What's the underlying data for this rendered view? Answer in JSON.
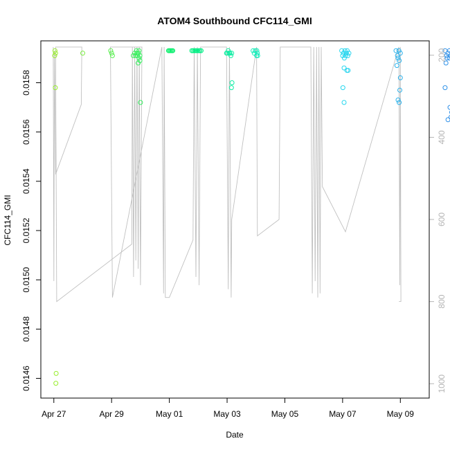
{
  "chart_data": {
    "type": "scatter",
    "title": "ATOM4 Southbound CFC114_GMI",
    "xlabel": "Date",
    "ylabel": "CFC114_GMI",
    "x_ticks": [
      "Apr 27",
      "Apr 29",
      "May 01",
      "May 03",
      "May 05",
      "May 07",
      "May 09"
    ],
    "x_tick_days": [
      0,
      2,
      4,
      6,
      8,
      10,
      12
    ],
    "xlim_days": [
      -0.45,
      13.0
    ],
    "y_ticks": [
      "0.0146",
      "0.0148",
      "0.0150",
      "0.0152",
      "0.0154",
      "0.0156",
      "0.0158"
    ],
    "y_tick_values": [
      0.0146,
      0.0148,
      0.015,
      0.0152,
      0.0154,
      0.0156,
      0.0158
    ],
    "ylim": [
      0.01452,
      0.01597
    ],
    "right_axis": {
      "label": "",
      "ticks": [
        "200",
        "400",
        "600",
        "800",
        "1000"
      ],
      "tick_values": [
        200,
        400,
        600,
        800,
        1000
      ],
      "ylim": [
        165,
        1035
      ],
      "reversed": true,
      "color": "#b4b4b4"
    },
    "colors": {
      "points_start": "#9aee2a",
      "points_mid": "#00f07a",
      "points_cyan": "#22e8f0",
      "points_end": "#2f8fe8",
      "pressure_line": "#c0c0c0"
    },
    "series": [
      {
        "values": [
          [
            0.04,
            0.01593
          ],
          [
            0.06,
            0.01592
          ],
          [
            0.03,
            0.01591
          ],
          [
            0.05,
            0.01578
          ],
          [
            0.08,
            0.01462
          ],
          [
            0.07,
            0.01458
          ],
          [
            1.0,
            0.01592
          ],
          [
            1.97,
            0.01593
          ],
          [
            2.0,
            0.01592
          ],
          [
            2.03,
            0.01591
          ],
          [
            2.75,
            0.01591
          ],
          [
            2.8,
            0.01592
          ],
          [
            2.83,
            0.01591
          ],
          [
            2.86,
            0.01593
          ],
          [
            2.88,
            0.01592
          ],
          [
            2.9,
            0.01591
          ],
          [
            2.93,
            0.01592
          ],
          [
            2.95,
            0.01593
          ],
          [
            2.98,
            0.01591
          ],
          [
            2.95,
            0.0159
          ],
          [
            2.92,
            0.01588
          ],
          [
            2.98,
            0.01589
          ],
          [
            3.0,
            0.01572
          ],
          [
            3.97,
            0.01593
          ],
          [
            4.0,
            0.01593
          ],
          [
            4.03,
            0.01593
          ],
          [
            4.06,
            0.01593
          ],
          [
            4.09,
            0.01593
          ],
          [
            4.12,
            0.01593
          ],
          [
            4.78,
            0.01593
          ],
          [
            4.82,
            0.01593
          ],
          [
            4.86,
            0.01593
          ],
          [
            4.9,
            0.01593
          ],
          [
            4.94,
            0.01593
          ],
          [
            4.98,
            0.01593
          ],
          [
            5.02,
            0.01593
          ],
          [
            5.06,
            0.01593
          ],
          [
            5.1,
            0.01593
          ],
          [
            5.98,
            0.01592
          ],
          [
            6.01,
            0.01592
          ],
          [
            6.04,
            0.01593
          ],
          [
            6.07,
            0.01592
          ],
          [
            6.1,
            0.01592
          ],
          [
            6.13,
            0.01591
          ],
          [
            6.16,
            0.01592
          ],
          [
            6.15,
            0.01578
          ],
          [
            6.17,
            0.0158
          ],
          [
            6.9,
            0.01593
          ],
          [
            6.94,
            0.01592
          ],
          [
            6.98,
            0.01593
          ],
          [
            7.02,
            0.01591
          ],
          [
            7.05,
            0.01592
          ],
          [
            7.06,
            0.01591
          ],
          [
            7.03,
            0.01593
          ]
        ]
      },
      {
        "values": [
          [
            9.97,
            0.01593
          ],
          [
            10.0,
            0.01591
          ],
          [
            10.03,
            0.01592
          ],
          [
            10.06,
            0.0159
          ],
          [
            10.08,
            0.01593
          ],
          [
            10.1,
            0.01591
          ],
          [
            10.13,
            0.01592
          ],
          [
            10.16,
            0.01593
          ],
          [
            10.18,
            0.01591
          ],
          [
            10.22,
            0.01592
          ],
          [
            10.05,
            0.01586
          ],
          [
            10.15,
            0.01585
          ],
          [
            10.19,
            0.01585
          ],
          [
            10.01,
            0.01578
          ],
          [
            10.05,
            0.01572
          ],
          [
            11.85,
            0.01593
          ],
          [
            11.9,
            0.01591
          ],
          [
            11.95,
            0.01593
          ],
          [
            12.0,
            0.01592
          ],
          [
            11.92,
            0.0159
          ],
          [
            11.88,
            0.01587
          ],
          [
            11.96,
            0.01589
          ],
          [
            12.0,
            0.01582
          ],
          [
            11.98,
            0.01577
          ],
          [
            11.92,
            0.01573
          ],
          [
            11.96,
            0.01572
          ]
        ]
      },
      {
        "values": [
          [
            13.55,
            0.01593
          ],
          [
            13.6,
            0.01591
          ],
          [
            13.65,
            0.01592
          ],
          [
            13.7,
            0.01593
          ],
          [
            13.75,
            0.01591
          ],
          [
            13.8,
            0.01592
          ],
          [
            13.62,
            0.0159
          ],
          [
            13.7,
            0.0159
          ],
          [
            13.58,
            0.01588
          ],
          [
            13.55,
            0.01578
          ],
          [
            13.72,
            0.0157
          ],
          [
            13.78,
            0.01568
          ],
          [
            13.75,
            0.01566
          ],
          [
            13.65,
            0.01565
          ]
        ]
      }
    ],
    "pressure_line": [
      [
        -0.02,
        180
      ],
      [
        0.0,
        750
      ],
      [
        0.02,
        190
      ],
      [
        0.06,
        490
      ],
      [
        0.95,
        320
      ],
      [
        0.97,
        180
      ],
      [
        0.06,
        180
      ],
      [
        0.1,
        800
      ],
      [
        2.7,
        660
      ],
      [
        2.72,
        180
      ],
      [
        2.76,
        740
      ],
      [
        2.8,
        180
      ],
      [
        2.84,
        700
      ],
      [
        2.88,
        180
      ],
      [
        2.92,
        720
      ],
      [
        2.96,
        180
      ],
      [
        3.0,
        760
      ],
      [
        3.05,
        180
      ],
      [
        1.96,
        180
      ],
      [
        2.03,
        790
      ],
      [
        3.74,
        180
      ],
      [
        3.8,
        780
      ],
      [
        3.82,
        180
      ],
      [
        3.86,
        790
      ],
      [
        4.0,
        790
      ],
      [
        4.82,
        650
      ],
      [
        4.86,
        180
      ],
      [
        4.92,
        740
      ],
      [
        4.97,
        180
      ],
      [
        5.03,
        760
      ],
      [
        5.08,
        180
      ],
      [
        5.98,
        180
      ],
      [
        6.04,
        770
      ],
      [
        6.08,
        180
      ],
      [
        6.14,
        790
      ],
      [
        6.16,
        600
      ],
      [
        7.02,
        180
      ],
      [
        7.05,
        640
      ],
      [
        7.8,
        600
      ],
      [
        7.84,
        180
      ],
      [
        8.9,
        180
      ],
      [
        8.95,
        780
      ],
      [
        9.0,
        180
      ],
      [
        9.05,
        750
      ],
      [
        9.1,
        180
      ],
      [
        9.14,
        790
      ],
      [
        9.18,
        180
      ],
      [
        9.22,
        780
      ],
      [
        9.26,
        180
      ],
      [
        9.3,
        520
      ],
      [
        10.1,
        630
      ],
      [
        11.95,
        180
      ],
      [
        11.98,
        760
      ],
      [
        12.0,
        180
      ],
      [
        12.02,
        800
      ],
      [
        11.95,
        800
      ]
    ]
  }
}
